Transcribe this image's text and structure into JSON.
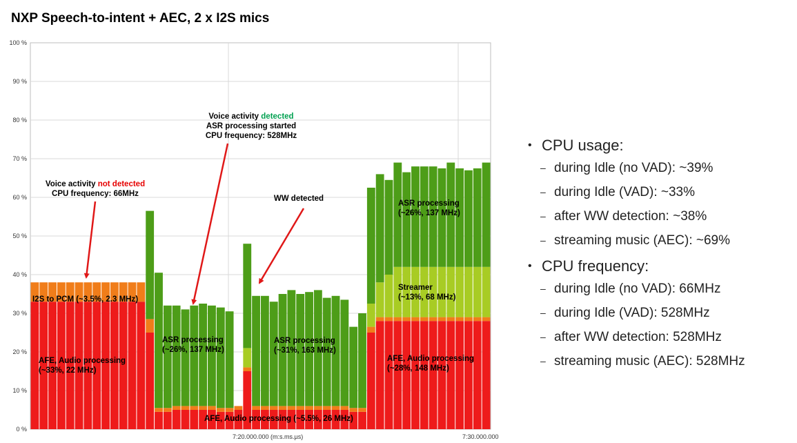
{
  "title": "NXP Speech-to-intent + AEC, 2 x I2S mics",
  "colors": {
    "afe": "#ee1b1b",
    "i2s": "#f07d1a",
    "asr": "#4d9d18",
    "streamer": "#a8cc24",
    "arrow": "#e01818",
    "not_detected": "#e60000",
    "detected": "#00a050"
  },
  "chart_data": {
    "type": "bar",
    "stacked": true,
    "ylim": [
      0,
      100
    ],
    "y_ticks": [
      "0 %",
      "10 %",
      "20 %",
      "30 %",
      "40 %",
      "50 %",
      "60 %",
      "70 %",
      "80 %",
      "90 %",
      "100 %"
    ],
    "x_ticks": [
      "7:20.000.000 (m:s.ms.µs)",
      "7:30.000.000"
    ],
    "grid": true,
    "bar_count": 52,
    "series": [
      {
        "key": "afe",
        "values": [
          33,
          33,
          33,
          33,
          33,
          33,
          33,
          33,
          33,
          33,
          33,
          33,
          33,
          25,
          4.5,
          4.5,
          5,
          5,
          5,
          5,
          5,
          4.5,
          4.5,
          5,
          15,
          5,
          5,
          5,
          5,
          5,
          5,
          5,
          5,
          5,
          5,
          5,
          4.5,
          4.5,
          25,
          28,
          28,
          28,
          28,
          28,
          28,
          28,
          28,
          28,
          28,
          28,
          28,
          28
        ]
      },
      {
        "key": "i2s",
        "values": [
          5,
          5,
          5,
          5,
          5,
          5,
          5,
          5,
          5,
          5,
          5,
          5,
          5,
          3.5,
          1,
          1,
          1,
          1,
          1,
          1,
          1,
          1,
          1,
          1,
          1,
          1,
          1,
          1,
          1,
          1,
          1,
          1,
          1,
          1,
          1,
          1,
          1,
          1,
          1.5,
          1,
          1,
          1,
          1,
          1,
          1,
          1,
          1,
          1,
          1,
          1,
          1,
          1
        ]
      },
      {
        "key": "streamer",
        "values": [
          0,
          0,
          0,
          0,
          0,
          0,
          0,
          0,
          0,
          0,
          0,
          0,
          0,
          0,
          0,
          0,
          0,
          0,
          0,
          0,
          0,
          0,
          0,
          0,
          5,
          0,
          0,
          0,
          0,
          0,
          0,
          0,
          0,
          0,
          0,
          0,
          0,
          0,
          6,
          9,
          11,
          13,
          13,
          13,
          13,
          13,
          13,
          13,
          13,
          13,
          13,
          13
        ]
      },
      {
        "key": "asr",
        "values": [
          0,
          0,
          0,
          0,
          0,
          0,
          0,
          0,
          0,
          0,
          0,
          0,
          0,
          28,
          35,
          26.5,
          26,
          25,
          26,
          26.5,
          26,
          26,
          25,
          0,
          27,
          28.5,
          28.5,
          27,
          29,
          30,
          29,
          29.5,
          30,
          28,
          28.5,
          27.5,
          21,
          24.5,
          30,
          28,
          24.5,
          27,
          24.5,
          26,
          26,
          26,
          25.5,
          27,
          25.5,
          25,
          25.5,
          27
        ]
      }
    ],
    "annotations": [
      {
        "lines": [
          "Voice activity ",
          "not detected"
        ],
        "line2": "CPU frequency: 66MHz"
      },
      {
        "line1": "Voice activity ",
        "highlight": "detected",
        "line2": "ASR processing started",
        "line3": "CPU frequency: 528MHz"
      },
      {
        "text": "WW detected"
      },
      {
        "text": "I2S to PCM (~3.5%, 2.3 MHz)"
      },
      {
        "text": "AFE, Audio processing",
        "sub": "(~33%, 22 MHz)"
      },
      {
        "text": "ASR processing",
        "sub": "(~26%, 137 MHz)"
      },
      {
        "text": "ASR processing",
        "sub": "(~31%, 163 MHz)"
      },
      {
        "text": "AFE, Audio processing (~5.5%, 26 MHz)"
      },
      {
        "text": "ASR processing",
        "sub": "(~26%, 137 MHz)"
      },
      {
        "text": "Streamer",
        "sub": "(~13%, 68 MHz)"
      },
      {
        "text": "AFE, Audio processing",
        "sub": "(~28%, 148 MHz)"
      }
    ]
  },
  "notes": [
    {
      "label": "CPU usage:",
      "items": [
        "during Idle (no VAD): ~39%",
        "during Idle (VAD): ~33%",
        "after WW detection: ~38%",
        "streaming music (AEC): ~69%"
      ]
    },
    {
      "label": "CPU frequency:",
      "items": [
        "during Idle (no VAD): 66MHz",
        "during Idle (VAD): 528MHz",
        "after WW detection: 528MHz",
        "streaming music (AEC): 528MHz"
      ]
    }
  ]
}
